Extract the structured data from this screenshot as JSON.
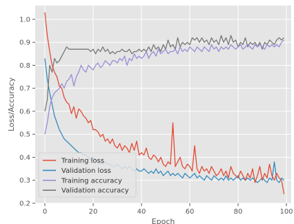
{
  "chart_data": {
    "type": "line",
    "xlabel": "Epoch",
    "ylabel": "Loss/Accuracy",
    "xlim": [
      -4,
      102
    ],
    "ylim": [
      0.2,
      1.06
    ],
    "xticks": [
      "0",
      "20",
      "40",
      "60",
      "80",
      "100"
    ],
    "yticks": [
      "0.2",
      "0.3",
      "0.4",
      "0.5",
      "0.6",
      "0.7",
      "0.8",
      "0.9",
      "1.0"
    ],
    "grid": true,
    "legend_position": "lower-left",
    "series": [
      {
        "name": "Training loss",
        "color": "#E24A33",
        "x": [
          0,
          1,
          2,
          3,
          4,
          5,
          6,
          7,
          8,
          9,
          10,
          11,
          12,
          13,
          14,
          15,
          16,
          17,
          18,
          19,
          20,
          21,
          22,
          23,
          24,
          25,
          26,
          27,
          28,
          29,
          30,
          31,
          32,
          33,
          34,
          35,
          36,
          37,
          38,
          39,
          40,
          41,
          42,
          43,
          44,
          45,
          46,
          47,
          48,
          49,
          50,
          51,
          52,
          53,
          54,
          55,
          56,
          57,
          58,
          59,
          60,
          61,
          62,
          63,
          64,
          65,
          66,
          67,
          68,
          69,
          70,
          71,
          72,
          73,
          74,
          75,
          76,
          77,
          78,
          79,
          80,
          81,
          82,
          83,
          84,
          85,
          86,
          87,
          88,
          89,
          90,
          91,
          92,
          93,
          94,
          95,
          96,
          97,
          98,
          99
        ],
        "y": [
          1.03,
          0.93,
          0.86,
          0.8,
          0.77,
          0.75,
          0.71,
          0.7,
          0.66,
          0.64,
          0.63,
          0.59,
          0.62,
          0.57,
          0.61,
          0.6,
          0.58,
          0.57,
          0.55,
          0.56,
          0.52,
          0.52,
          0.51,
          0.49,
          0.5,
          0.47,
          0.48,
          0.46,
          0.48,
          0.45,
          0.44,
          0.46,
          0.43,
          0.45,
          0.44,
          0.42,
          0.46,
          0.43,
          0.47,
          0.41,
          0.42,
          0.41,
          0.44,
          0.4,
          0.39,
          0.41,
          0.4,
          0.38,
          0.4,
          0.37,
          0.36,
          0.38,
          0.37,
          0.55,
          0.36,
          0.38,
          0.4,
          0.36,
          0.35,
          0.37,
          0.36,
          0.34,
          0.45,
          0.35,
          0.33,
          0.36,
          0.34,
          0.35,
          0.33,
          0.36,
          0.34,
          0.32,
          0.33,
          0.35,
          0.32,
          0.34,
          0.31,
          0.36,
          0.33,
          0.32,
          0.31,
          0.34,
          0.32,
          0.3,
          0.33,
          0.31,
          0.35,
          0.29,
          0.32,
          0.36,
          0.3,
          0.33,
          0.31,
          0.37,
          0.32,
          0.3,
          0.33,
          0.31,
          0.3,
          0.24
        ]
      },
      {
        "name": "Validation loss",
        "color": "#348ABD",
        "x": [
          0,
          1,
          2,
          3,
          4,
          5,
          6,
          7,
          8,
          9,
          10,
          11,
          12,
          13,
          14,
          15,
          16,
          17,
          18,
          19,
          20,
          21,
          22,
          23,
          24,
          25,
          26,
          27,
          28,
          29,
          30,
          31,
          32,
          33,
          34,
          35,
          36,
          37,
          38,
          39,
          40,
          41,
          42,
          43,
          44,
          45,
          46,
          47,
          48,
          49,
          50,
          51,
          52,
          53,
          54,
          55,
          56,
          57,
          58,
          59,
          60,
          61,
          62,
          63,
          64,
          65,
          66,
          67,
          68,
          69,
          70,
          71,
          72,
          73,
          74,
          75,
          76,
          77,
          78,
          79,
          80,
          81,
          82,
          83,
          84,
          85,
          86,
          87,
          88,
          89,
          90,
          91,
          92,
          93,
          94,
          95,
          96,
          97,
          98,
          99
        ],
        "y": [
          0.83,
          0.74,
          0.68,
          0.63,
          0.58,
          0.55,
          0.52,
          0.5,
          0.48,
          0.47,
          0.46,
          0.45,
          0.44,
          0.43,
          0.42,
          0.42,
          0.41,
          0.41,
          0.4,
          0.39,
          0.4,
          0.39,
          0.38,
          0.38,
          0.37,
          0.38,
          0.37,
          0.37,
          0.36,
          0.36,
          0.37,
          0.36,
          0.35,
          0.36,
          0.35,
          0.36,
          0.35,
          0.34,
          0.35,
          0.34,
          0.34,
          0.35,
          0.34,
          0.33,
          0.34,
          0.33,
          0.35,
          0.33,
          0.34,
          0.32,
          0.33,
          0.34,
          0.32,
          0.33,
          0.32,
          0.33,
          0.32,
          0.31,
          0.33,
          0.32,
          0.31,
          0.32,
          0.33,
          0.31,
          0.32,
          0.31,
          0.3,
          0.32,
          0.31,
          0.3,
          0.32,
          0.31,
          0.3,
          0.31,
          0.3,
          0.32,
          0.3,
          0.31,
          0.3,
          0.31,
          0.32,
          0.3,
          0.31,
          0.3,
          0.31,
          0.3,
          0.31,
          0.3,
          0.29,
          0.3,
          0.31,
          0.3,
          0.29,
          0.31,
          0.3,
          0.38,
          0.3,
          0.29,
          0.31,
          0.3
        ]
      },
      {
        "name": "Training accuracy",
        "color": "#988ED5",
        "x": [
          0,
          1,
          2,
          3,
          4,
          5,
          6,
          7,
          8,
          9,
          10,
          11,
          12,
          13,
          14,
          15,
          16,
          17,
          18,
          19,
          20,
          21,
          22,
          23,
          24,
          25,
          26,
          27,
          28,
          29,
          30,
          31,
          32,
          33,
          34,
          35,
          36,
          37,
          38,
          39,
          40,
          41,
          42,
          43,
          44,
          45,
          46,
          47,
          48,
          49,
          50,
          51,
          52,
          53,
          54,
          55,
          56,
          57,
          58,
          59,
          60,
          61,
          62,
          63,
          64,
          65,
          66,
          67,
          68,
          69,
          70,
          71,
          72,
          73,
          74,
          75,
          76,
          77,
          78,
          79,
          80,
          81,
          82,
          83,
          84,
          85,
          86,
          87,
          88,
          89,
          90,
          91,
          92,
          93,
          94,
          95,
          96,
          97,
          98,
          99
        ],
        "y": [
          0.5,
          0.55,
          0.62,
          0.66,
          0.68,
          0.69,
          0.7,
          0.72,
          0.7,
          0.73,
          0.74,
          0.76,
          0.71,
          0.75,
          0.77,
          0.8,
          0.78,
          0.77,
          0.8,
          0.79,
          0.78,
          0.8,
          0.81,
          0.79,
          0.8,
          0.82,
          0.81,
          0.8,
          0.82,
          0.82,
          0.81,
          0.83,
          0.82,
          0.84,
          0.8,
          0.83,
          0.82,
          0.85,
          0.83,
          0.84,
          0.83,
          0.84,
          0.86,
          0.83,
          0.85,
          0.86,
          0.84,
          0.87,
          0.85,
          0.86,
          0.87,
          0.85,
          0.86,
          0.86,
          0.87,
          0.85,
          0.88,
          0.86,
          0.87,
          0.86,
          0.88,
          0.87,
          0.86,
          0.88,
          0.87,
          0.86,
          0.88,
          0.87,
          0.86,
          0.89,
          0.87,
          0.88,
          0.86,
          0.88,
          0.87,
          0.88,
          0.87,
          0.89,
          0.88,
          0.87,
          0.88,
          0.89,
          0.87,
          0.88,
          0.89,
          0.88,
          0.87,
          0.89,
          0.88,
          0.89,
          0.88,
          0.87,
          0.89,
          0.88,
          0.89,
          0.88,
          0.89,
          0.88,
          0.9,
          0.91
        ]
      },
      {
        "name": "Validation accuracy",
        "color": "#777777",
        "x": [
          0,
          1,
          2,
          3,
          4,
          5,
          6,
          7,
          8,
          9,
          10,
          11,
          12,
          13,
          14,
          15,
          16,
          17,
          18,
          19,
          20,
          21,
          22,
          23,
          24,
          25,
          26,
          27,
          28,
          29,
          30,
          31,
          32,
          33,
          34,
          35,
          36,
          37,
          38,
          39,
          40,
          41,
          42,
          43,
          44,
          45,
          46,
          47,
          48,
          49,
          50,
          51,
          52,
          53,
          54,
          55,
          56,
          57,
          58,
          59,
          60,
          61,
          62,
          63,
          64,
          65,
          66,
          67,
          68,
          69,
          70,
          71,
          72,
          73,
          74,
          75,
          76,
          77,
          78,
          79,
          80,
          81,
          82,
          83,
          84,
          85,
          86,
          87,
          88,
          89,
          90,
          91,
          92,
          93,
          94,
          95,
          96,
          97,
          98,
          99
        ],
        "y": [
          0.6,
          0.65,
          0.8,
          0.77,
          0.83,
          0.81,
          0.82,
          0.84,
          0.86,
          0.88,
          0.87,
          0.87,
          0.87,
          0.87,
          0.87,
          0.87,
          0.87,
          0.87,
          0.87,
          0.86,
          0.87,
          0.85,
          0.87,
          0.86,
          0.88,
          0.86,
          0.87,
          0.85,
          0.86,
          0.85,
          0.86,
          0.86,
          0.87,
          0.86,
          0.86,
          0.87,
          0.85,
          0.86,
          0.86,
          0.87,
          0.86,
          0.87,
          0.86,
          0.88,
          0.86,
          0.89,
          0.87,
          0.88,
          0.86,
          0.89,
          0.87,
          0.91,
          0.88,
          0.89,
          0.87,
          0.92,
          0.88,
          0.9,
          0.89,
          0.9,
          0.89,
          0.92,
          0.91,
          0.92,
          0.9,
          0.92,
          0.9,
          0.91,
          0.89,
          0.92,
          0.9,
          0.91,
          0.89,
          0.93,
          0.9,
          0.92,
          0.89,
          0.93,
          0.9,
          0.91,
          0.88,
          0.9,
          0.89,
          0.92,
          0.88,
          0.9,
          0.89,
          0.9,
          0.88,
          0.9,
          0.87,
          0.9,
          0.89,
          0.91,
          0.9,
          0.89,
          0.91,
          0.92,
          0.91,
          0.92
        ]
      }
    ]
  }
}
